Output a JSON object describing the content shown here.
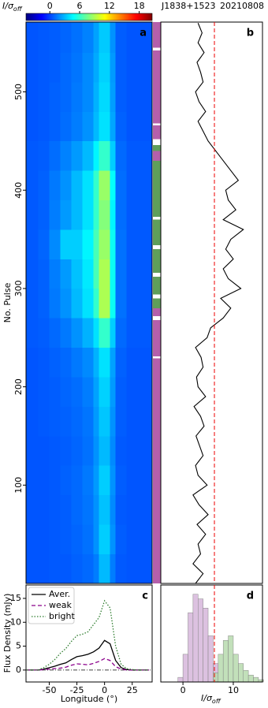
{
  "chart_data": [
    {
      "type": "heatmap",
      "label": "a",
      "source": "J1838+1523",
      "date": "20210808",
      "colorbar_label": "I/σ",
      "colorbar_label_sub": "off",
      "clim": [
        -4.8,
        20.6
      ],
      "colorbar_ticks": [
        0,
        6,
        12,
        18
      ],
      "ylabel": "No. Pulse",
      "xlim": [
        -71,
        43
      ],
      "ylim": [
        0,
        571
      ],
      "yticks": [
        100,
        200,
        300,
        400,
        500
      ],
      "lon_edges": [
        -71,
        -60,
        -50,
        -40,
        -30,
        -20,
        -10,
        -5,
        5,
        10,
        20,
        43
      ],
      "pulse_edges": [
        0,
        30,
        60,
        90,
        120,
        150,
        180,
        210,
        240,
        270,
        300,
        330,
        360,
        390,
        420,
        450,
        480,
        510,
        540,
        571
      ],
      "values": [
        [
          0.5,
          0.5,
          0.6,
          0.6,
          0.8,
          1,
          1.5,
          3,
          1.5,
          0.6,
          0.5
        ],
        [
          0.5,
          0.5,
          0.6,
          0.7,
          0.9,
          1.2,
          2,
          3.5,
          2,
          0.7,
          0.5
        ],
        [
          0.5,
          0.5,
          0.6,
          0.7,
          1,
          1.3,
          2,
          3.2,
          1.8,
          0.6,
          0.5
        ],
        [
          0.5,
          0.5,
          0.6,
          0.8,
          1,
          1.4,
          2.2,
          3.5,
          2,
          0.7,
          0.5
        ],
        [
          0.5,
          0.5,
          0.6,
          0.7,
          0.9,
          1.2,
          2,
          3,
          1.8,
          0.6,
          0.5
        ],
        [
          0.5,
          0.6,
          0.7,
          0.8,
          1,
          1.3,
          2.2,
          3.3,
          2,
          0.7,
          0.5
        ],
        [
          0.5,
          0.6,
          0.7,
          0.9,
          1.1,
          1.5,
          2.4,
          3.6,
          2.2,
          0.7,
          0.5
        ],
        [
          0.5,
          0.6,
          0.8,
          1,
          1.4,
          1.8,
          2.8,
          4,
          2.4,
          0.8,
          0.5
        ],
        [
          0.6,
          0.7,
          1,
          1.4,
          2,
          2.8,
          4,
          6,
          3.5,
          1,
          0.6
        ],
        [
          0.6,
          0.8,
          1.4,
          2,
          3,
          4,
          6,
          9,
          5,
          1.2,
          0.6
        ],
        [
          0.6,
          0.8,
          1.5,
          2.2,
          3.2,
          4.2,
          6.5,
          9,
          5,
          1.2,
          0.6
        ],
        [
          0.6,
          0.9,
          1.8,
          3.5,
          3.5,
          4.5,
          6.5,
          8.5,
          5,
          1.2,
          0.6
        ],
        [
          0.6,
          0.8,
          1.5,
          2.2,
          3,
          4,
          6,
          8,
          4.5,
          1.1,
          0.6
        ],
        [
          0.6,
          0.8,
          1.4,
          2,
          3,
          4,
          6,
          8.5,
          4.8,
          1.1,
          0.6
        ],
        [
          0.6,
          0.7,
          1.1,
          1.6,
          2.2,
          3,
          4.5,
          6,
          3.5,
          1,
          0.6
        ],
        [
          0.5,
          0.6,
          0.8,
          1.1,
          1.5,
          2,
          3,
          4,
          2.5,
          0.8,
          0.5
        ],
        [
          0.5,
          0.6,
          0.8,
          1,
          1.4,
          1.8,
          2.8,
          3.8,
          2.3,
          0.7,
          0.5
        ],
        [
          0.5,
          0.6,
          0.7,
          1,
          1.3,
          1.8,
          2.6,
          3.6,
          2.2,
          0.7,
          0.5
        ],
        [
          0.5,
          0.6,
          0.7,
          0.9,
          1.2,
          1.6,
          2.4,
          3.4,
          2,
          0.7,
          0.5
        ]
      ]
    },
    {
      "type": "strip",
      "ylim": [
        0,
        571
      ],
      "segments": [
        {
          "from": 0,
          "to": 229,
          "color": "#b45fab"
        },
        {
          "from": 229,
          "to": 231,
          "color": "#ffffff"
        },
        {
          "from": 231,
          "to": 268,
          "color": "#b45fab"
        },
        {
          "from": 268,
          "to": 272,
          "color": "#ffffff"
        },
        {
          "from": 272,
          "to": 280,
          "color": "#b45fab"
        },
        {
          "from": 280,
          "to": 290,
          "color": "#5f9f5a"
        },
        {
          "from": 290,
          "to": 294,
          "color": "#ffffff"
        },
        {
          "from": 294,
          "to": 312,
          "color": "#5f9f5a"
        },
        {
          "from": 312,
          "to": 316,
          "color": "#ffffff"
        },
        {
          "from": 316,
          "to": 340,
          "color": "#5f9f5a"
        },
        {
          "from": 340,
          "to": 344,
          "color": "#ffffff"
        },
        {
          "from": 344,
          "to": 370,
          "color": "#5f9f5a"
        },
        {
          "from": 370,
          "to": 373,
          "color": "#ffffff"
        },
        {
          "from": 373,
          "to": 430,
          "color": "#5f9f5a"
        },
        {
          "from": 430,
          "to": 440,
          "color": "#b45fab"
        },
        {
          "from": 440,
          "to": 446,
          "color": "#5f9f5a"
        },
        {
          "from": 446,
          "to": 452,
          "color": "#ffffff"
        },
        {
          "from": 452,
          "to": 466,
          "color": "#b45fab"
        },
        {
          "from": 466,
          "to": 468,
          "color": "#ffffff"
        },
        {
          "from": 468,
          "to": 542,
          "color": "#b45fab"
        },
        {
          "from": 542,
          "to": 545,
          "color": "#ffffff"
        },
        {
          "from": 545,
          "to": 571,
          "color": "#b45fab"
        }
      ]
    },
    {
      "type": "line",
      "label": "b",
      "xlim": [
        -4.4,
        15.8
      ],
      "ylim": [
        0,
        571
      ],
      "threshold": 6.25,
      "color": "#000000",
      "pulse": [
        0,
        10,
        20,
        30,
        40,
        50,
        60,
        70,
        80,
        90,
        100,
        110,
        120,
        130,
        140,
        150,
        160,
        170,
        180,
        190,
        200,
        210,
        220,
        230,
        240,
        250,
        260,
        270,
        280,
        290,
        300,
        310,
        320,
        330,
        340,
        350,
        360,
        370,
        380,
        390,
        400,
        410,
        420,
        430,
        440,
        450,
        460,
        470,
        480,
        490,
        500,
        510,
        520,
        530,
        540,
        550,
        560,
        570
      ],
      "values": [
        2.5,
        4,
        2,
        3.5,
        3,
        4.5,
        2.8,
        5,
        3.2,
        2,
        4.8,
        3,
        2.5,
        4,
        3.3,
        2.6,
        4.2,
        3.5,
        2.2,
        4.5,
        3,
        2.7,
        4,
        3.6,
        2.5,
        4.8,
        5.5,
        8,
        9.5,
        7.5,
        11.5,
        9,
        8,
        10,
        8.5,
        9.5,
        12,
        8,
        10.5,
        9,
        8.5,
        11,
        9.5,
        8,
        6.5,
        5,
        4,
        3,
        4.5,
        3.2,
        2.5,
        4,
        3.5,
        2.8,
        4.2,
        3,
        3.8,
        3
      ]
    },
    {
      "type": "line",
      "label": "c",
      "xlabel": "Longitude (°)",
      "ylabel": "Flux Density (mJy)",
      "xlim": [
        -71,
        43
      ],
      "ylim": [
        -2.5,
        17.8
      ],
      "xticks": [
        -50,
        -25,
        0,
        25
      ],
      "yticks": [
        0,
        5,
        10,
        15
      ],
      "x": [
        -70,
        -65,
        -60,
        -55,
        -50,
        -45,
        -40,
        -35,
        -30,
        -25,
        -20,
        -15,
        -10,
        -5,
        0,
        5,
        10,
        15,
        20,
        25,
        30,
        35,
        40
      ],
      "series": [
        {
          "name": "Aver.",
          "color": "#000000",
          "values": [
            0,
            0,
            0,
            0.2,
            0.5,
            0.8,
            1.2,
            1.5,
            2.2,
            2.8,
            3,
            3.3,
            3.8,
            4.6,
            6.2,
            5.5,
            2,
            0.5,
            0.1,
            0,
            0,
            0,
            0
          ]
        },
        {
          "name": "weak",
          "color": "#8b008b",
          "values": [
            0,
            0,
            0,
            0.1,
            0.2,
            0.3,
            0.4,
            0.6,
            1,
            1.3,
            1.2,
            1.1,
            1.4,
            1.8,
            2.4,
            2,
            0.7,
            0.2,
            0,
            0,
            0,
            0,
            0
          ]
        },
        {
          "name": "bright",
          "color": "#2e7d2e",
          "values": [
            0,
            0,
            0,
            0.5,
            1.2,
            2.2,
            3.5,
            4.5,
            6,
            7.2,
            7.5,
            8,
            9.5,
            11,
            14.5,
            13,
            5,
            1.2,
            0.3,
            0.1,
            0,
            0,
            0
          ]
        }
      ]
    },
    {
      "type": "histogram",
      "label": "d",
      "xlabel": "I/σ",
      "xlabel_sub": "off",
      "xlim": [
        -4.4,
        15.8
      ],
      "ylim": [
        0,
        42
      ],
      "xticks": [
        0,
        10
      ],
      "threshold": 6.25,
      "bins": [
        -4,
        -3,
        -2,
        -1,
        0,
        1,
        2,
        3,
        4,
        5,
        6,
        7,
        8,
        9,
        10,
        11,
        12,
        13,
        14,
        15,
        16
      ],
      "series": [
        {
          "color": "#d6b6db",
          "values": [
            0,
            0,
            0,
            2,
            12,
            30,
            38,
            36,
            32,
            20,
            8,
            0,
            0,
            0,
            0,
            0,
            0,
            0,
            0,
            0
          ]
        },
        {
          "color": "#b7dbae",
          "values": [
            0,
            0,
            0,
            0,
            0,
            0,
            0,
            0,
            0,
            0,
            4,
            12,
            18,
            20,
            12,
            8,
            5,
            3,
            2,
            1
          ]
        }
      ]
    }
  ]
}
